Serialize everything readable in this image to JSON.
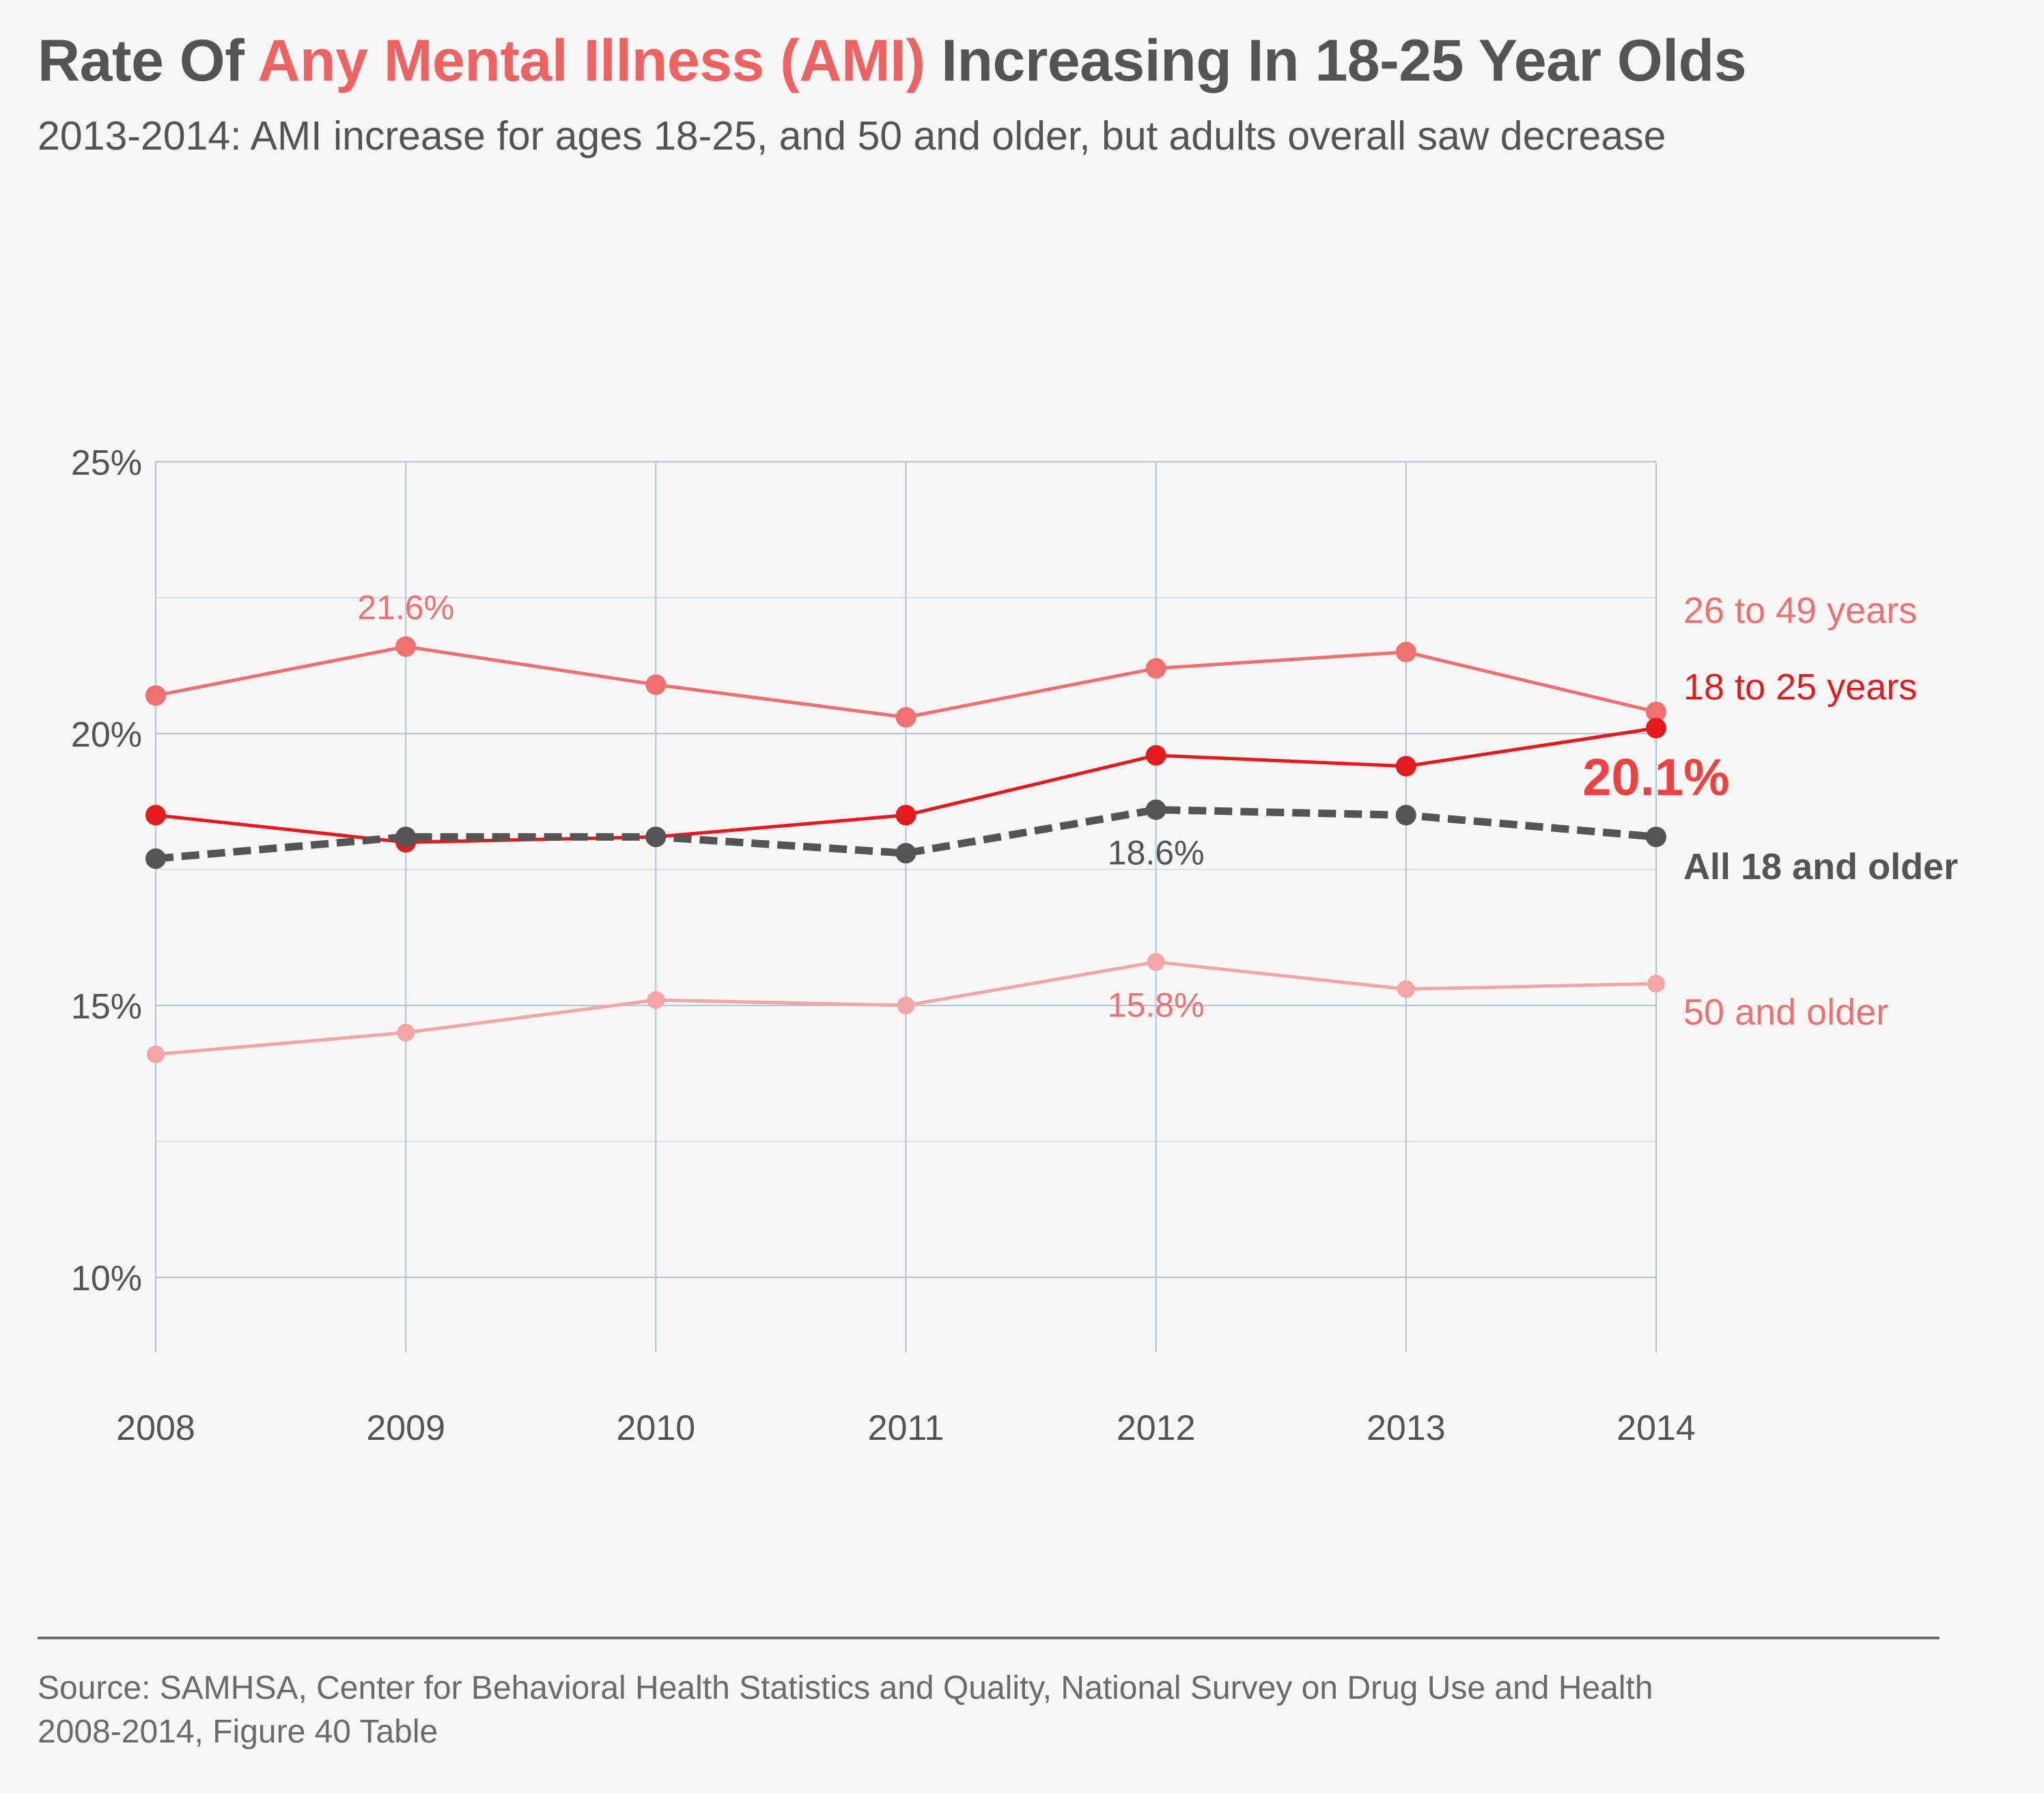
{
  "header": {
    "title_before": "Rate Of ",
    "title_highlight": "Any Mental Illness (AMI)",
    "title_after": " Increasing In 18-25 Year Olds",
    "subtitle": "2013-2014: AMI increase for ages 18-25, and 50 and older, but adults overall saw decrease"
  },
  "footer": {
    "source_line1": "Source: SAMHSA, Center for Behavioral Health Statistics and Quality, National Survey on Drug Use and Health",
    "source_line2": "2008-2014, Figure 40 Table"
  },
  "chart_data": {
    "type": "line",
    "x": [
      2008,
      2009,
      2010,
      2011,
      2012,
      2013,
      2014
    ],
    "x_tick_labels": [
      "2008",
      "2009",
      "2010",
      "2011",
      "2012",
      "2013",
      "2014"
    ],
    "ylim": [
      8.6,
      25
    ],
    "y_ticks": [
      10,
      15,
      20,
      25
    ],
    "y_tick_labels": [
      "10%",
      "15%",
      "20%",
      "25%"
    ],
    "minor_y_gridlines": [
      12.5,
      17.5,
      22.5
    ],
    "grid": true,
    "legend": "direct labels at right",
    "series": [
      {
        "name": "26 to 49 years",
        "values": [
          20.7,
          21.6,
          20.9,
          20.3,
          21.2,
          21.5,
          20.4
        ],
        "color": "#f07070",
        "style": "solid",
        "bold": false
      },
      {
        "name": "18 to 25 years",
        "values": [
          18.5,
          18.0,
          18.1,
          18.5,
          19.6,
          19.4,
          20.1
        ],
        "color": "#e41a1c",
        "style": "solid",
        "bold": false
      },
      {
        "name": "All 18 and older",
        "values": [
          17.7,
          18.1,
          18.1,
          17.8,
          18.6,
          18.5,
          18.1
        ],
        "color": "#545454",
        "style": "dashed",
        "bold": true
      },
      {
        "name": "50 and older",
        "values": [
          14.1,
          14.5,
          15.1,
          15.0,
          15.8,
          15.3,
          15.4
        ],
        "color": "#f4a6a6",
        "style": "solid",
        "bold": false
      }
    ],
    "series_label_colors": [
      "#f07070",
      "#e41a1c",
      "#545454",
      "#f07070"
    ],
    "annotations": [
      {
        "text": "21.6%",
        "series": 0,
        "index": 1,
        "color": "#f07070",
        "size": "normal",
        "placement": "above"
      },
      {
        "text": "18.6%",
        "series": 2,
        "index": 4,
        "color": "#545454",
        "size": "normal",
        "placement": "below"
      },
      {
        "text": "15.8%",
        "series": 3,
        "index": 4,
        "color": "#f07070",
        "size": "normal",
        "placement": "below"
      },
      {
        "text": "20.1%",
        "series": 1,
        "index": 6,
        "color": "#f04040",
        "size": "large",
        "placement": "below"
      }
    ],
    "grid_color": "#b4c3dc",
    "minor_grid_color": "#d4def0"
  }
}
